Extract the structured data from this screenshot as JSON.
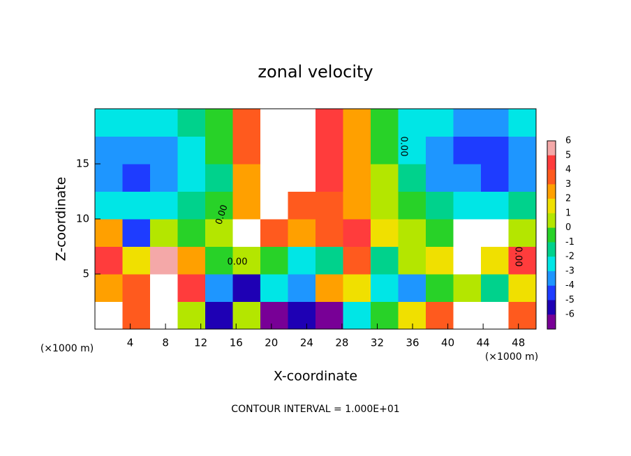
{
  "chart_data": {
    "type": "heatmap",
    "title": "zonal velocity",
    "x_label": "X-coordinate",
    "y_label": "Z-coordinate",
    "x_unit": "(×1000 m)",
    "y_unit": "(×1000 m)",
    "footer": "CONTOUR INTERVAL = 1.000E+01",
    "contour_labels": [
      "0.00",
      "0.00",
      "0.00",
      "0.00"
    ],
    "xlim": [
      0,
      50
    ],
    "ylim": [
      0,
      20
    ],
    "xticks": [
      4,
      8,
      12,
      16,
      20,
      24,
      28,
      32,
      36,
      40,
      44,
      48
    ],
    "yticks": [
      5,
      10,
      15
    ],
    "x_edges": [
      0,
      3.125,
      6.25,
      9.375,
      12.5,
      15.625,
      18.75,
      21.875,
      25,
      28.125,
      31.25,
      34.375,
      37.5,
      40.625,
      43.75,
      46.875,
      50
    ],
    "z_edges": [
      0,
      2.5,
      5,
      7.5,
      10,
      12.5,
      15,
      17.5,
      20
    ],
    "values": [
      [
        8,
        4,
        8,
        1,
        -5,
        1,
        -6,
        -5,
        -6,
        -2,
        0,
        2,
        4,
        8,
        8,
        4
      ],
      [
        3,
        4,
        7,
        5,
        -3,
        -5,
        -2,
        -3,
        3,
        2,
        -2,
        -3,
        0,
        1,
        -1,
        2
      ],
      [
        5,
        2,
        6,
        3,
        0,
        1,
        0,
        -2,
        -1,
        4,
        -1,
        1,
        2,
        8,
        2,
        5
      ],
      [
        3,
        -4,
        1,
        0,
        1,
        7,
        4,
        3,
        4,
        5,
        2,
        1,
        0,
        8,
        7,
        1
      ],
      [
        -2,
        -2.5,
        -2,
        -1,
        0,
        3,
        7,
        4,
        4,
        3,
        1,
        0,
        -1,
        -2,
        -2,
        -1
      ],
      [
        -3,
        -4,
        -3,
        -2,
        -1,
        3,
        8,
        7,
        5,
        3,
        1,
        -1,
        -3,
        -3.5,
        -4,
        -3
      ],
      [
        -3,
        -3.5,
        -3,
        -2,
        -0.5,
        4,
        8,
        8,
        5,
        3,
        0,
        -2,
        -3,
        -4,
        -4,
        -3
      ],
      [
        -2,
        -2.5,
        -2,
        -1,
        0,
        4,
        8,
        8,
        5,
        3,
        0,
        -2,
        -2.5,
        -3,
        -3,
        -2
      ]
    ],
    "colorbar": {
      "ticks": [
        6,
        5,
        4,
        3,
        2,
        1,
        0,
        -1,
        -2,
        -3,
        -4,
        -5,
        -6
      ],
      "colors": [
        "#f4a8a8",
        "#ff3c3c",
        "#ff5a1e",
        "#ffa000",
        "#f0e000",
        "#b4e600",
        "#28d228",
        "#00d28c",
        "#00e6e6",
        "#1e96ff",
        "#1e3cff",
        "#1e00b4",
        "#780096"
      ],
      "over_color": "#ffffff"
    }
  }
}
